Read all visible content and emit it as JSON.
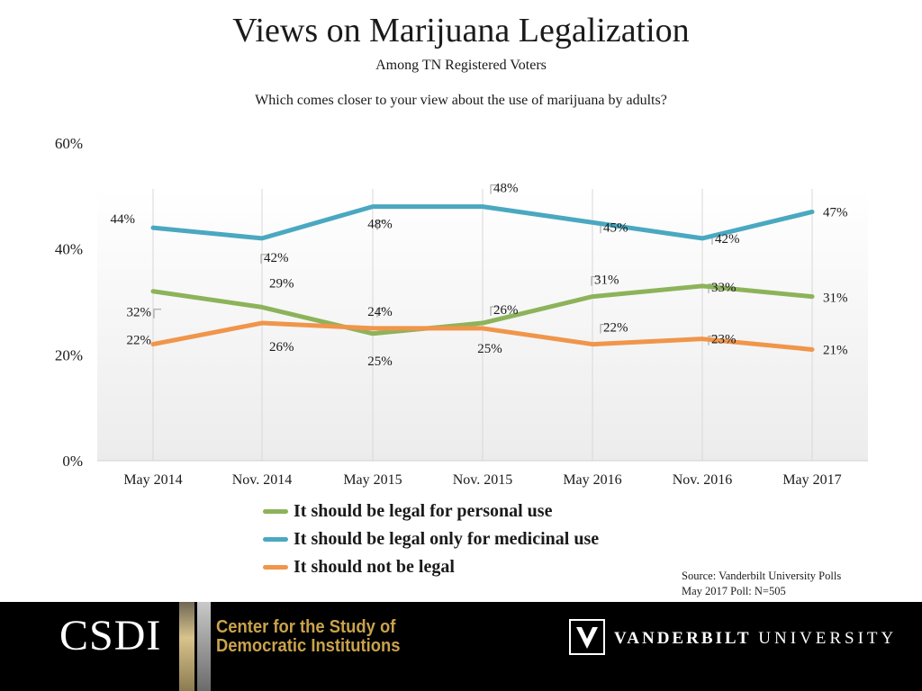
{
  "colors": {
    "personal": "#8db35a",
    "medicinal": "#4aa8c0",
    "not_legal": "#f0954a",
    "footer_bg": "#000000",
    "gold": "#c9a24b"
  },
  "chart_data": {
    "type": "line",
    "title": "Views on Marijuana Legalization",
    "subtitle": "Among TN Registered Voters",
    "question": "Which comes closer to your view about the use of marijuana by adults?",
    "categories": [
      "May 2014",
      "Nov. 2014",
      "May 2015",
      "Nov. 2015",
      "May 2016",
      "Nov. 2016",
      "May 2017"
    ],
    "ylim": [
      0,
      60
    ],
    "yticks": [
      "0%",
      "20%",
      "40%",
      "60%"
    ],
    "series": [
      {
        "name": "It should be legal for personal use",
        "key": "personal",
        "values": [
          32,
          29,
          24,
          26,
          31,
          33,
          31
        ]
      },
      {
        "name": "It should be legal only for medicinal use",
        "key": "medicinal",
        "values": [
          44,
          42,
          48,
          48,
          45,
          42,
          47
        ]
      },
      {
        "name": "It should not be legal",
        "key": "not_legal",
        "values": [
          22,
          26,
          25,
          25,
          22,
          23,
          21
        ]
      }
    ]
  },
  "source": {
    "line1": "Source: Vanderbilt University Polls",
    "line2": "May 2017 Poll: N=505"
  },
  "footer": {
    "csdi": "CSDI",
    "center_line1": "Center for the Study of",
    "center_line2": "Democratic Institutions",
    "vu_bold": "VANDERBILT",
    "vu_light": "UNIVERSITY"
  }
}
